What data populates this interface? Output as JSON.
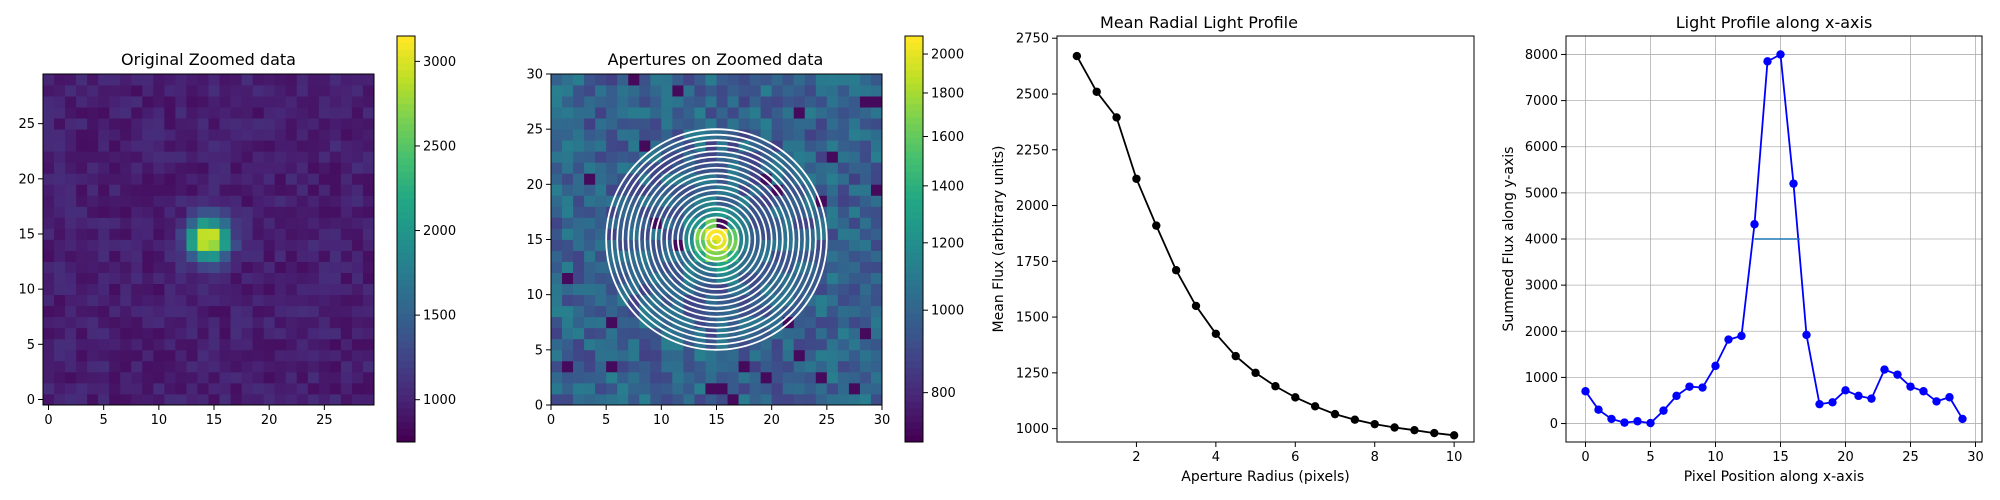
{
  "chart_data": [
    {
      "type": "heatmap",
      "title": "Original Zoomed data",
      "xlabel": "",
      "ylabel": "",
      "xlim": [
        -0.5,
        29.5
      ],
      "ylim": [
        -0.5,
        29.5
      ],
      "xticks": [
        0,
        5,
        10,
        15,
        20,
        25
      ],
      "yticks": [
        0,
        5,
        10,
        15,
        20,
        25
      ],
      "colormap": "viridis",
      "color_range": [
        750,
        3150
      ],
      "colorbar_ticks": [
        1000,
        1500,
        2000,
        2500,
        3000
      ],
      "background_level": 950,
      "peak": {
        "x": 14.5,
        "y": 14.5,
        "value": 3150,
        "sigma": 1.3
      }
    },
    {
      "type": "heatmap",
      "title": "Apertures on Zoomed data",
      "xlabel": "",
      "ylabel": "",
      "xlim": [
        0,
        30
      ],
      "ylim": [
        0,
        30
      ],
      "xticks": [
        0,
        5,
        10,
        15,
        20,
        25,
        30
      ],
      "yticks": [
        0,
        5,
        10,
        15,
        20,
        25,
        30
      ],
      "colormap": "viridis",
      "color_scale": "log",
      "color_range": [
        700,
        2100
      ],
      "colorbar_ticks": [
        800,
        1000,
        1200,
        1400,
        1600,
        1800,
        2000
      ],
      "apertures": {
        "center": [
          15,
          15
        ],
        "radii": [
          0.5,
          1.0,
          1.5,
          2.0,
          2.5,
          3.0,
          3.5,
          4.0,
          4.5,
          5.0,
          5.5,
          6.0,
          6.5,
          7.0,
          7.5,
          8.0,
          8.5,
          9.0,
          9.5,
          10.0
        ],
        "color": "#ffffff"
      }
    },
    {
      "type": "line",
      "title": "Mean Radial Light Profile",
      "xlabel": "Aperture Radius (pixels)",
      "ylabel": "Mean Flux (arbitrary units)",
      "xlim": [
        -0.0,
        10.5
      ],
      "ylim": [
        940,
        2760
      ],
      "xticks": [
        2,
        4,
        6,
        8,
        10
      ],
      "yticks": [
        1000,
        1250,
        1500,
        1750,
        2000,
        2250,
        2500,
        2750
      ],
      "series": [
        {
          "color": "#000000",
          "x": [
            0.5,
            1.0,
            1.5,
            2.0,
            2.5,
            3.0,
            3.5,
            4.0,
            4.5,
            5.0,
            5.5,
            6.0,
            6.5,
            7.0,
            7.5,
            8.0,
            8.5,
            9.0,
            9.5,
            10.0
          ],
          "values": [
            2670,
            2510,
            2395,
            2120,
            1910,
            1710,
            1550,
            1425,
            1325,
            1250,
            1190,
            1140,
            1100,
            1065,
            1040,
            1020,
            1005,
            993,
            980,
            970
          ]
        }
      ]
    },
    {
      "type": "line",
      "title": "Light Profile along x-axis",
      "xlabel": "Pixel Position along x-axis",
      "ylabel": "Summed Flux along y-axis",
      "xlim": [
        -1.5,
        30.5
      ],
      "ylim": [
        -400,
        8400
      ],
      "xticks": [
        0,
        5,
        10,
        15,
        20,
        25,
        30
      ],
      "yticks": [
        0,
        1000,
        2000,
        3000,
        4000,
        5000,
        6000,
        7000,
        8000
      ],
      "grid": true,
      "series": [
        {
          "color": "#0000ff",
          "x": [
            0,
            1,
            2,
            3,
            4,
            5,
            6,
            7,
            8,
            9,
            10,
            11,
            12,
            13,
            14,
            15,
            16,
            17,
            18,
            19,
            20,
            21,
            22,
            23,
            24,
            25,
            26,
            27,
            28,
            29
          ],
          "values": [
            700,
            300,
            100,
            20,
            50,
            10,
            280,
            600,
            800,
            780,
            1250,
            1820,
            1900,
            4320,
            7850,
            8000,
            5200,
            1920,
            420,
            460,
            720,
            600,
            540,
            1170,
            1060,
            800,
            700,
            480,
            570,
            100
          ]
        }
      ],
      "fwhm_line": {
        "x": [
          13.0,
          16.5
        ],
        "y": 4000,
        "color": "#1f77b4"
      }
    }
  ]
}
